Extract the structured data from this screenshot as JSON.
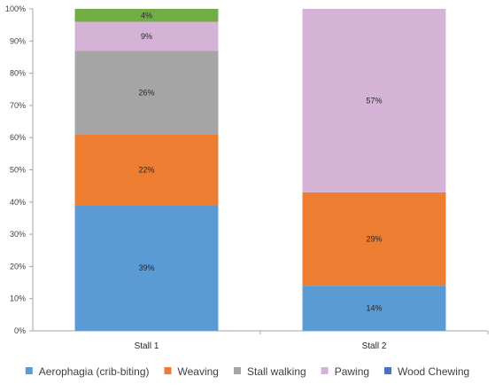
{
  "chart_data": {
    "type": "bar",
    "stacked": true,
    "categories": [
      "Stall 1",
      "Stall 2"
    ],
    "series": [
      {
        "name": "Aerophagia (crib-biting)",
        "color": "#5b9bd5",
        "values": [
          39,
          14
        ]
      },
      {
        "name": "Weaving",
        "color": "#ed7d31",
        "values": [
          22,
          29
        ]
      },
      {
        "name": "Stall walking",
        "color": "#a5a5a5",
        "values": [
          26,
          0
        ]
      },
      {
        "name": "Pawing",
        "color": "#d5b3d6",
        "values": [
          9,
          57
        ]
      },
      {
        "name": "Wood Chewing",
        "color": "#4472c4",
        "values": [
          0,
          0
        ]
      },
      {
        "name": "",
        "color": "#70ad47",
        "values": [
          4,
          0
        ]
      }
    ],
    "data_labels": [
      [
        "39%",
        "14%"
      ],
      [
        "22%",
        "29%"
      ],
      [
        "26%",
        ""
      ],
      [
        "9%",
        "57%"
      ],
      [
        "",
        ""
      ],
      [
        "4%",
        ""
      ]
    ],
    "yticks": [
      "0%",
      "10%",
      "20%",
      "30%",
      "40%",
      "50%",
      "60%",
      "70%",
      "80%",
      "90%",
      "100%"
    ],
    "ylim": [
      0,
      100
    ],
    "grid": false,
    "legend_position": "bottom",
    "title": "",
    "xlabel": "",
    "ylabel": ""
  }
}
